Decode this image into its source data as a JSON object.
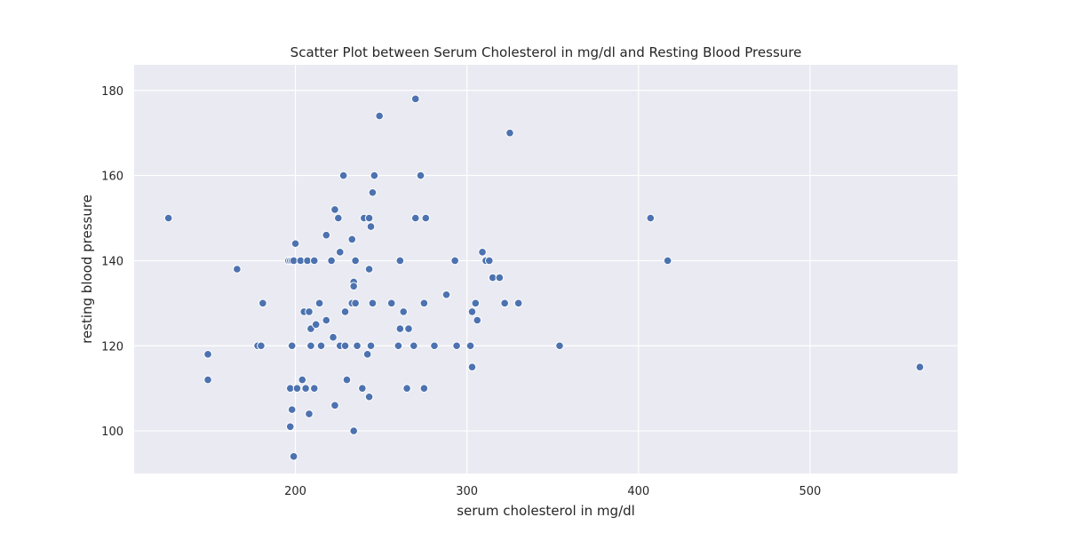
{
  "chart_data": {
    "type": "scatter",
    "title": "Scatter Plot between Serum Cholesterol in mg/dl and Resting Blood Pressure",
    "xlabel": "serum cholesterol in mg/dl",
    "ylabel": "resting blood pressure",
    "xlim": [
      106,
      586
    ],
    "ylim": [
      90,
      186
    ],
    "xticks": [
      200,
      300,
      400,
      500
    ],
    "yticks": [
      100,
      120,
      140,
      160,
      180
    ],
    "grid": true,
    "colors": {
      "background": "#eaeaf2",
      "point": "#4c72b0",
      "grid": "#ffffff"
    },
    "points": [
      {
        "x": 126,
        "y": 150
      },
      {
        "x": 149,
        "y": 118
      },
      {
        "x": 149,
        "y": 112
      },
      {
        "x": 166,
        "y": 138
      },
      {
        "x": 178,
        "y": 120
      },
      {
        "x": 180,
        "y": 120
      },
      {
        "x": 181,
        "y": 130
      },
      {
        "x": 196,
        "y": 140
      },
      {
        "x": 197,
        "y": 140
      },
      {
        "x": 198,
        "y": 140
      },
      {
        "x": 199,
        "y": 140
      },
      {
        "x": 197,
        "y": 110
      },
      {
        "x": 197,
        "y": 101
      },
      {
        "x": 198,
        "y": 120
      },
      {
        "x": 198,
        "y": 105
      },
      {
        "x": 199,
        "y": 94
      },
      {
        "x": 200,
        "y": 144
      },
      {
        "x": 201,
        "y": 110
      },
      {
        "x": 203,
        "y": 140
      },
      {
        "x": 204,
        "y": 112
      },
      {
        "x": 205,
        "y": 128
      },
      {
        "x": 206,
        "y": 110
      },
      {
        "x": 207,
        "y": 140
      },
      {
        "x": 208,
        "y": 128
      },
      {
        "x": 208,
        "y": 104
      },
      {
        "x": 209,
        "y": 124
      },
      {
        "x": 209,
        "y": 120
      },
      {
        "x": 211,
        "y": 140
      },
      {
        "x": 211,
        "y": 110
      },
      {
        "x": 212,
        "y": 125
      },
      {
        "x": 214,
        "y": 130
      },
      {
        "x": 215,
        "y": 120
      },
      {
        "x": 218,
        "y": 126
      },
      {
        "x": 218,
        "y": 146
      },
      {
        "x": 221,
        "y": 140
      },
      {
        "x": 222,
        "y": 122
      },
      {
        "x": 223,
        "y": 152
      },
      {
        "x": 223,
        "y": 106
      },
      {
        "x": 225,
        "y": 150
      },
      {
        "x": 226,
        "y": 142
      },
      {
        "x": 226,
        "y": 120
      },
      {
        "x": 228,
        "y": 160
      },
      {
        "x": 229,
        "y": 120
      },
      {
        "x": 229,
        "y": 128
      },
      {
        "x": 230,
        "y": 112
      },
      {
        "x": 233,
        "y": 145
      },
      {
        "x": 233,
        "y": 130
      },
      {
        "x": 234,
        "y": 135
      },
      {
        "x": 234,
        "y": 134
      },
      {
        "x": 234,
        "y": 100
      },
      {
        "x": 235,
        "y": 130
      },
      {
        "x": 235,
        "y": 140
      },
      {
        "x": 236,
        "y": 120
      },
      {
        "x": 239,
        "y": 110
      },
      {
        "x": 240,
        "y": 150
      },
      {
        "x": 242,
        "y": 118
      },
      {
        "x": 243,
        "y": 150
      },
      {
        "x": 243,
        "y": 138
      },
      {
        "x": 243,
        "y": 108
      },
      {
        "x": 244,
        "y": 148
      },
      {
        "x": 244,
        "y": 120
      },
      {
        "x": 245,
        "y": 156
      },
      {
        "x": 245,
        "y": 130
      },
      {
        "x": 246,
        "y": 160
      },
      {
        "x": 249,
        "y": 174
      },
      {
        "x": 256,
        "y": 130
      },
      {
        "x": 260,
        "y": 120
      },
      {
        "x": 261,
        "y": 124
      },
      {
        "x": 261,
        "y": 140
      },
      {
        "x": 263,
        "y": 128
      },
      {
        "x": 265,
        "y": 110
      },
      {
        "x": 266,
        "y": 124
      },
      {
        "x": 269,
        "y": 120
      },
      {
        "x": 270,
        "y": 178
      },
      {
        "x": 270,
        "y": 150
      },
      {
        "x": 273,
        "y": 160
      },
      {
        "x": 275,
        "y": 130
      },
      {
        "x": 275,
        "y": 110
      },
      {
        "x": 276,
        "y": 150
      },
      {
        "x": 281,
        "y": 120
      },
      {
        "x": 288,
        "y": 132
      },
      {
        "x": 293,
        "y": 140
      },
      {
        "x": 294,
        "y": 120
      },
      {
        "x": 302,
        "y": 120
      },
      {
        "x": 303,
        "y": 128
      },
      {
        "x": 303,
        "y": 115
      },
      {
        "x": 305,
        "y": 130
      },
      {
        "x": 306,
        "y": 126
      },
      {
        "x": 309,
        "y": 142
      },
      {
        "x": 311,
        "y": 140
      },
      {
        "x": 313,
        "y": 140
      },
      {
        "x": 315,
        "y": 136
      },
      {
        "x": 319,
        "y": 136
      },
      {
        "x": 322,
        "y": 130
      },
      {
        "x": 325,
        "y": 170
      },
      {
        "x": 330,
        "y": 130
      },
      {
        "x": 354,
        "y": 120
      },
      {
        "x": 407,
        "y": 150
      },
      {
        "x": 417,
        "y": 140
      },
      {
        "x": 564,
        "y": 115
      }
    ]
  }
}
